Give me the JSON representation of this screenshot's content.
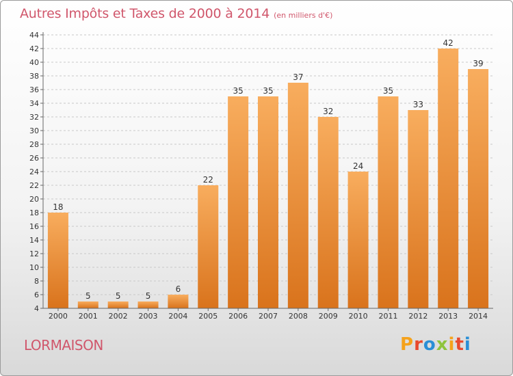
{
  "title": "Autres Impôts et Taxes de 2000 à 2014",
  "subtitle": "(en milliers d'€)",
  "commune": "LORMAISON",
  "brand": [
    "P",
    "r",
    "o",
    "x",
    "i",
    "t",
    "i"
  ],
  "brand_colors": [
    "#f5a21b",
    "#e84a2e",
    "#2a8fd6",
    "#8fc43c",
    "#f5a21b",
    "#e84a2e",
    "#2a8fd6"
  ],
  "colors": {
    "bar_light": "#f8ad5e",
    "bar_dark": "#d9731c",
    "title": "#d0566b"
  },
  "chart_data": {
    "type": "bar",
    "title": "Autres Impôts et Taxes de 2000 à 2014",
    "subtitle": "(en milliers d'€)",
    "categories": [
      "2000",
      "2001",
      "2002",
      "2003",
      "2004",
      "2005",
      "2006",
      "2007",
      "2008",
      "2009",
      "2010",
      "2011",
      "2012",
      "2013",
      "2014"
    ],
    "values": [
      18,
      5,
      5,
      5,
      6,
      22,
      35,
      35,
      37,
      32,
      24,
      35,
      33,
      42,
      39
    ],
    "ylim": [
      4,
      44
    ],
    "yticks": [
      4,
      6,
      8,
      10,
      12,
      14,
      16,
      18,
      20,
      22,
      24,
      26,
      28,
      30,
      32,
      34,
      36,
      38,
      40,
      42,
      44
    ],
    "grid": true,
    "data_labels": true
  }
}
